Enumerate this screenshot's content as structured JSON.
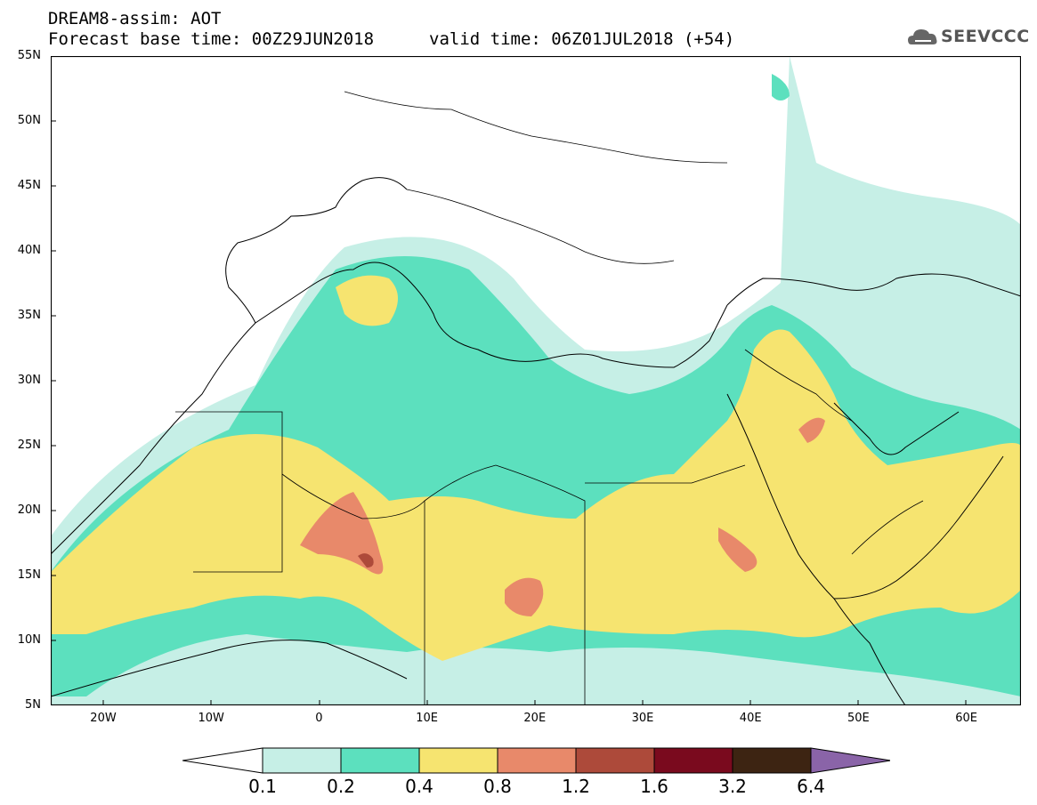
{
  "title": {
    "line1": "DREAM8-assim: AOT",
    "line2": "Forecast base time: 00Z29JUN2018",
    "valid": "valid time: 06Z01JUL2018 (+54)"
  },
  "logo": {
    "text": "SEEVCCC",
    "icon": "cloud-icon"
  },
  "map": {
    "lat_labels": [
      "55N",
      "50N",
      "45N",
      "40N",
      "35N",
      "30N",
      "25N",
      "20N",
      "15N",
      "10N",
      "5N"
    ],
    "lon_labels": [
      "20W",
      "10W",
      "0",
      "10E",
      "20E",
      "30E",
      "40E",
      "50E",
      "60E"
    ],
    "lat_range": [
      5,
      55
    ],
    "lon_range": [
      -25,
      65
    ]
  },
  "colorbar": {
    "levels": [
      "0.1",
      "0.2",
      "0.4",
      "0.8",
      "1.2",
      "1.6",
      "3.2",
      "6.4"
    ],
    "colors": [
      "#ffffff",
      "#c6efe6",
      "#5ce0be",
      "#f6e470",
      "#e8896a",
      "#ad4a3a",
      "#7a0a1e",
      "#3d2412",
      "#8a64a8"
    ]
  }
}
